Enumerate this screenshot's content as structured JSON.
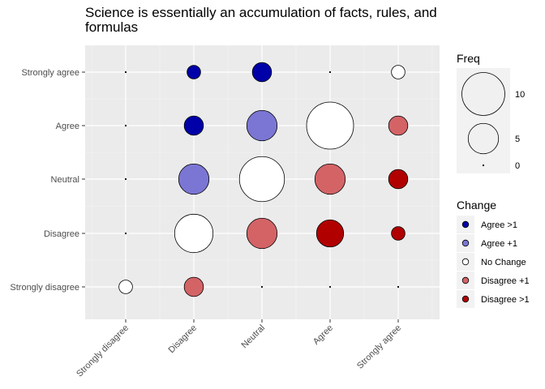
{
  "chart_data": {
    "type": "scatter",
    "title": "Science is essentially an accumulation of facts, rules, and formulas",
    "title_lines": [
      "Science is essentially an accumulation of facts, rules, and",
      "formulas"
    ],
    "x_categories": [
      "Strongly disagree",
      "Disagree",
      "Neutral",
      "Agree",
      "Strongly agree"
    ],
    "y_categories": [
      "Strongly disagree",
      "Disagree",
      "Neutral",
      "Agree",
      "Strongly agree"
    ],
    "xlabel": "",
    "ylabel": "",
    "grid": true,
    "size_legend": {
      "title": "Freq",
      "values": [
        10,
        5,
        0
      ],
      "labels": [
        "10",
        "5",
        "0"
      ],
      "max_freq": 12
    },
    "color_legend": {
      "title": "Change",
      "entries": [
        {
          "label": "Agree >1",
          "color": "#0000a8"
        },
        {
          "label": "Agree +1",
          "color": "#7b76d3"
        },
        {
          "label": "No Change",
          "color": "#ffffff"
        },
        {
          "label": "Disagree +1",
          "color": "#d46366"
        },
        {
          "label": "Disagree >1",
          "color": "#b10000"
        }
      ]
    },
    "points": [
      {
        "x": "Strongly disagree",
        "y": "Strongly agree",
        "freq": 0,
        "change": "Agree >1"
      },
      {
        "x": "Disagree",
        "y": "Strongly agree",
        "freq": 1,
        "change": "Agree >1"
      },
      {
        "x": "Neutral",
        "y": "Strongly agree",
        "freq": 2,
        "change": "Agree >1"
      },
      {
        "x": "Agree",
        "y": "Strongly agree",
        "freq": 0,
        "change": "Agree +1"
      },
      {
        "x": "Strongly agree",
        "y": "Strongly agree",
        "freq": 1,
        "change": "No Change"
      },
      {
        "x": "Strongly disagree",
        "y": "Agree",
        "freq": 0,
        "change": "Agree >1"
      },
      {
        "x": "Disagree",
        "y": "Agree",
        "freq": 2,
        "change": "Agree >1"
      },
      {
        "x": "Neutral",
        "y": "Agree",
        "freq": 5,
        "change": "Agree +1"
      },
      {
        "x": "Agree",
        "y": "Agree",
        "freq": 12,
        "change": "No Change"
      },
      {
        "x": "Strongly agree",
        "y": "Agree",
        "freq": 2,
        "change": "Disagree +1"
      },
      {
        "x": "Strongly disagree",
        "y": "Neutral",
        "freq": 0,
        "change": "Agree >1"
      },
      {
        "x": "Disagree",
        "y": "Neutral",
        "freq": 5,
        "change": "Agree +1"
      },
      {
        "x": "Neutral",
        "y": "Neutral",
        "freq": 11,
        "change": "No Change"
      },
      {
        "x": "Agree",
        "y": "Neutral",
        "freq": 5,
        "change": "Disagree +1"
      },
      {
        "x": "Strongly agree",
        "y": "Neutral",
        "freq": 2,
        "change": "Disagree >1"
      },
      {
        "x": "Strongly disagree",
        "y": "Disagree",
        "freq": 0,
        "change": "Agree +1"
      },
      {
        "x": "Disagree",
        "y": "Disagree",
        "freq": 8,
        "change": "No Change"
      },
      {
        "x": "Neutral",
        "y": "Disagree",
        "freq": 5,
        "change": "Disagree +1"
      },
      {
        "x": "Agree",
        "y": "Disagree",
        "freq": 4,
        "change": "Disagree >1"
      },
      {
        "x": "Strongly agree",
        "y": "Disagree",
        "freq": 1,
        "change": "Disagree >1"
      },
      {
        "x": "Strongly disagree",
        "y": "Strongly disagree",
        "freq": 1,
        "change": "No Change"
      },
      {
        "x": "Disagree",
        "y": "Strongly disagree",
        "freq": 2,
        "change": "Disagree +1"
      },
      {
        "x": "Neutral",
        "y": "Strongly disagree",
        "freq": 0,
        "change": "Disagree >1"
      },
      {
        "x": "Agree",
        "y": "Strongly disagree",
        "freq": 0,
        "change": "Disagree >1"
      },
      {
        "x": "Strongly agree",
        "y": "Strongly disagree",
        "freq": 0,
        "change": "Disagree >1"
      }
    ]
  }
}
